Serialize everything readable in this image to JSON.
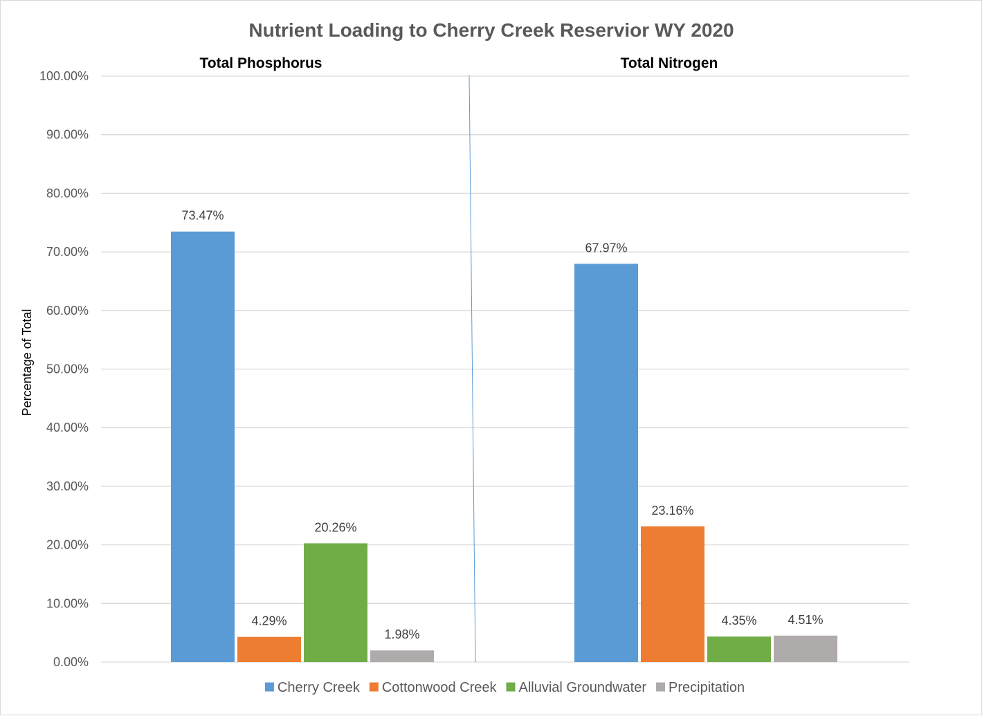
{
  "chart_data": {
    "type": "bar",
    "title": "Nutrient Loading to Cherry Creek Reservior WY 2020",
    "ylabel": "Percentage of Total",
    "xlabel": "",
    "ylim": [
      0,
      100
    ],
    "y_ticks": [
      "0.00%",
      "10.00%",
      "20.00%",
      "30.00%",
      "40.00%",
      "50.00%",
      "60.00%",
      "70.00%",
      "80.00%",
      "90.00%",
      "100.00%"
    ],
    "grid": true,
    "legend_position": "bottom",
    "groups": [
      {
        "title": "Total Phosphorus",
        "values": [
          73.47,
          4.29,
          20.26,
          1.98
        ],
        "labels": [
          "73.47%",
          "4.29%",
          "20.26%",
          "1.98%"
        ]
      },
      {
        "title": "Total Nitrogen",
        "values": [
          67.97,
          23.16,
          4.35,
          4.51
        ],
        "labels": [
          "67.97%",
          "23.16%",
          "4.35%",
          "4.51%"
        ]
      }
    ],
    "series": [
      {
        "name": "Cherry Creek",
        "color": "#5b9bd5"
      },
      {
        "name": "Cottonwood Creek",
        "color": "#ed7d31"
      },
      {
        "name": "Alluvial Groundwater",
        "color": "#70ad47"
      },
      {
        "name": "Precipitation",
        "color": "#afabab"
      }
    ],
    "divider_color": "#5b9bd5",
    "grid_color": "#d9d9d9"
  }
}
